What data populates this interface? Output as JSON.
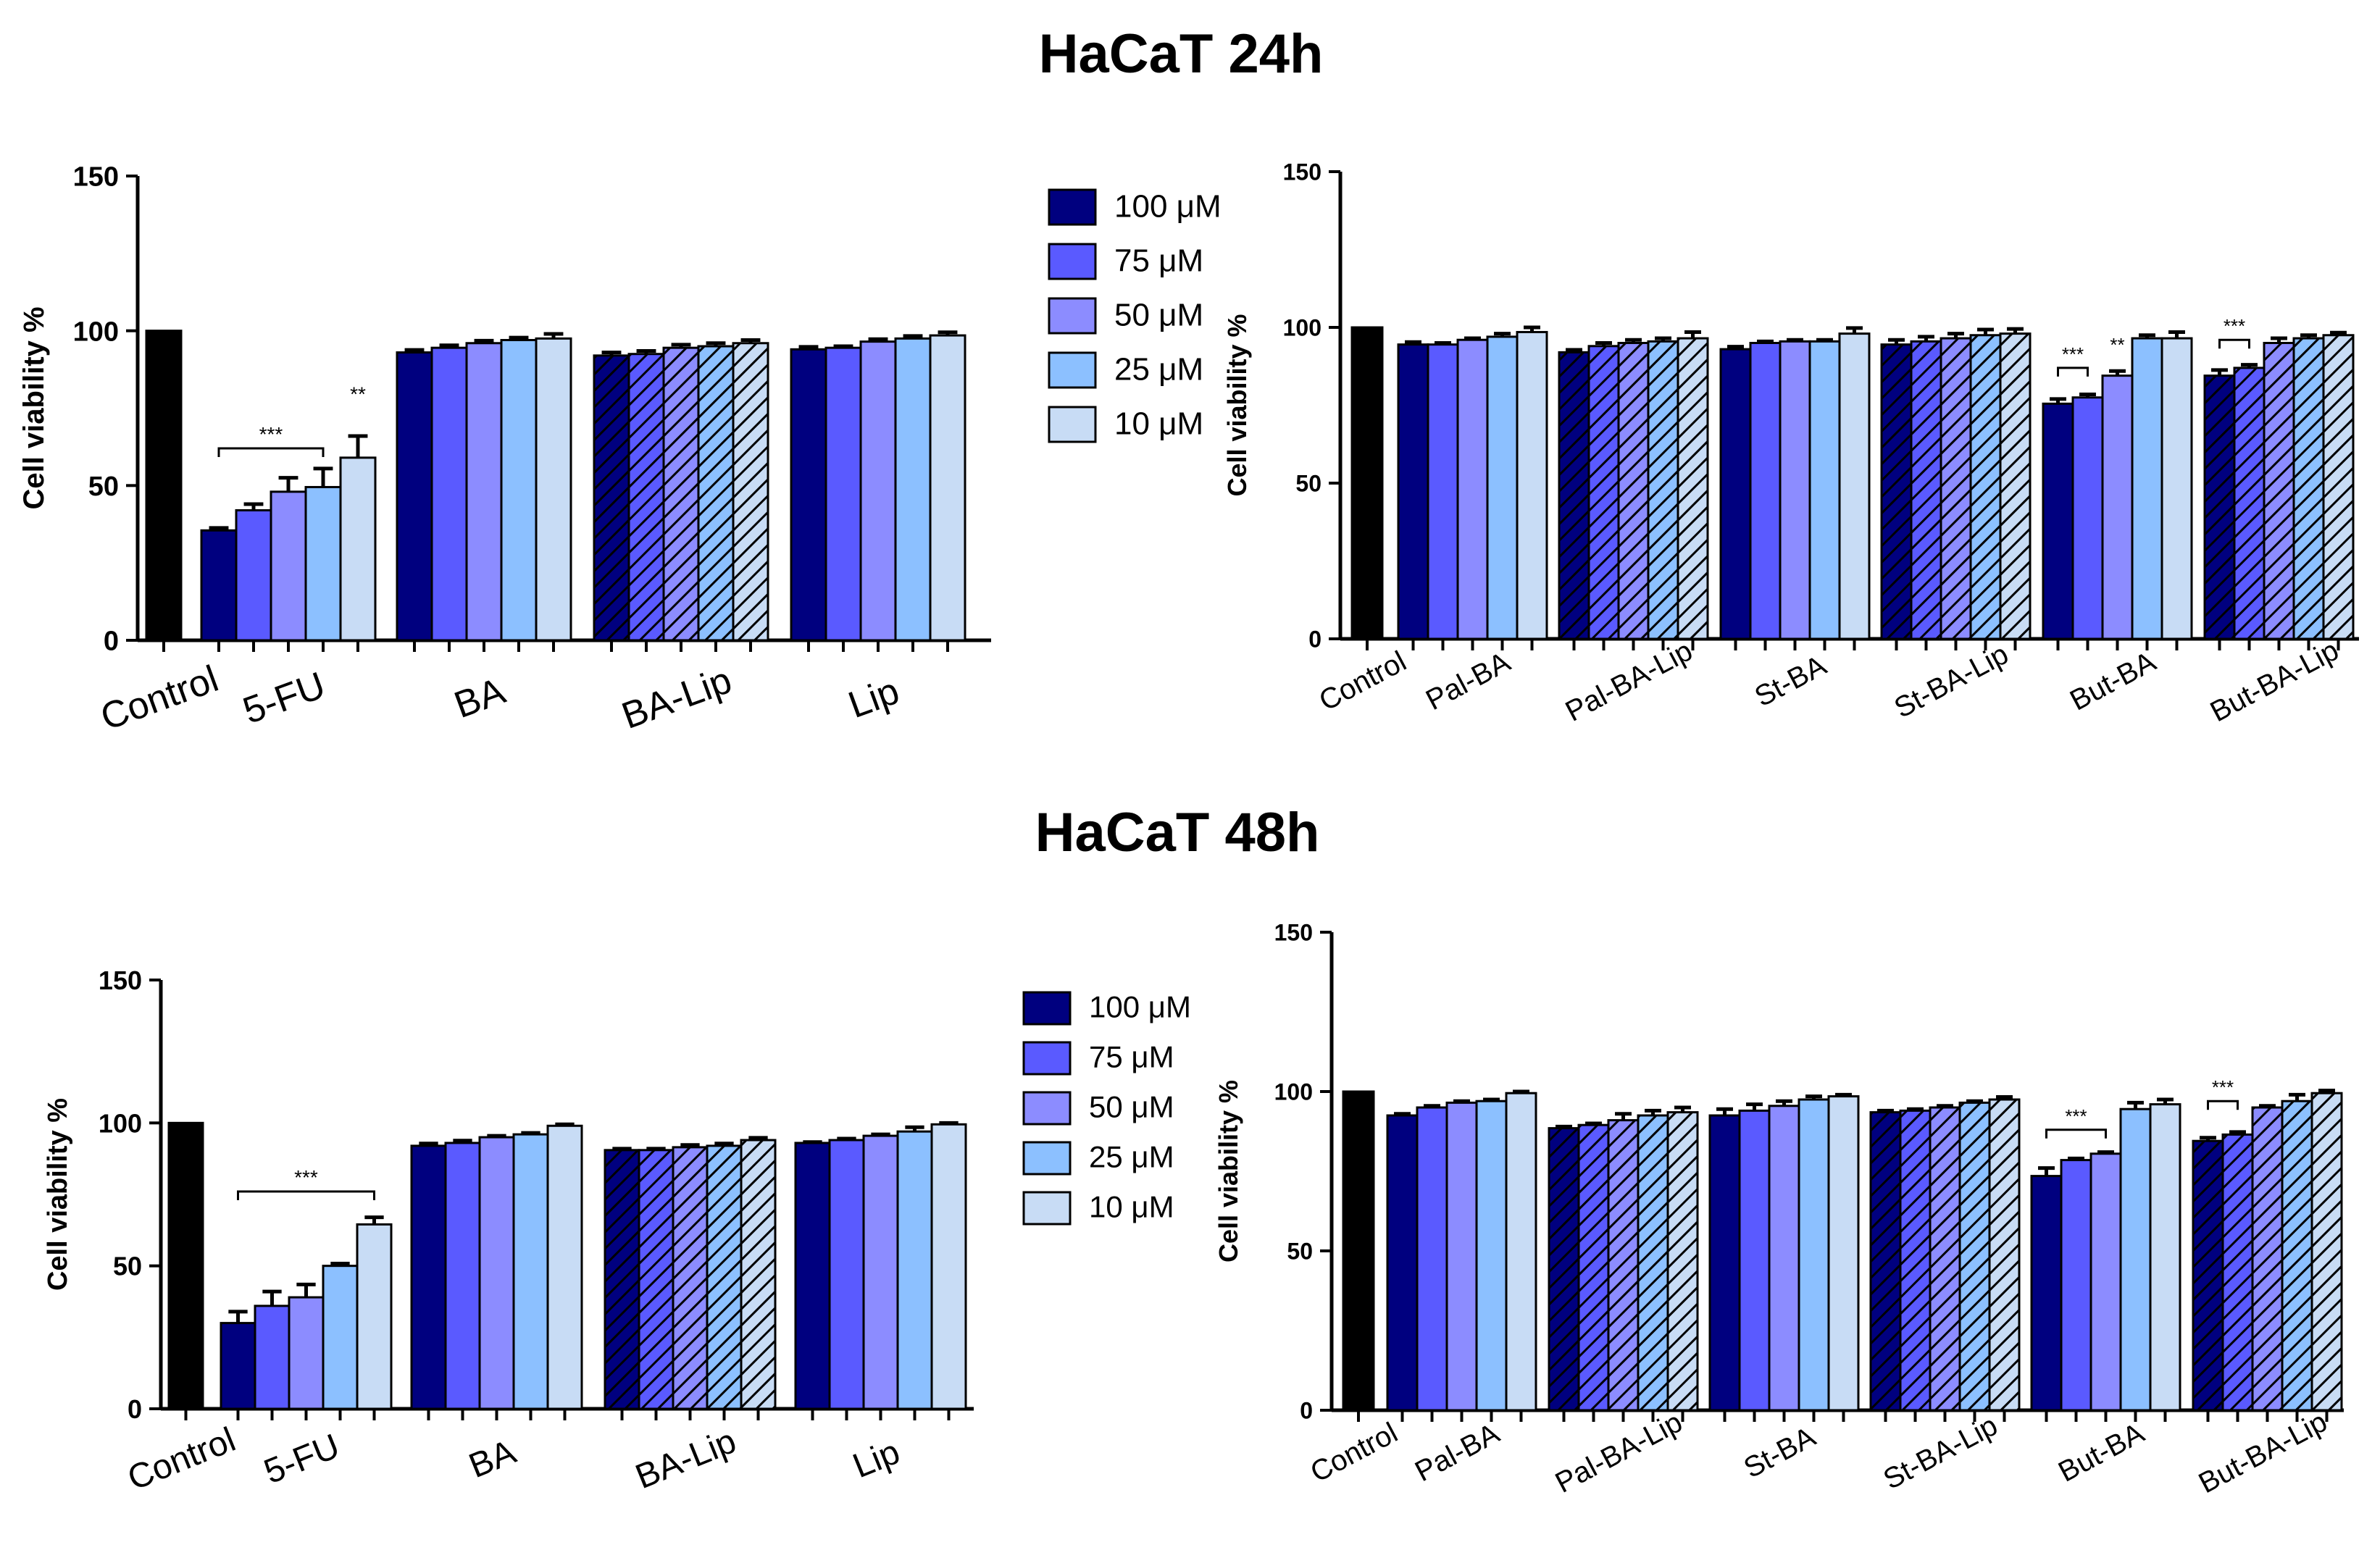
{
  "titles": {
    "top": "HaCaT 24h",
    "bottom": "HaCaT 48h"
  },
  "legend": [
    {
      "label": "100 μM",
      "color": "#00007f"
    },
    {
      "label": "75 μM",
      "color": "#5a5aff"
    },
    {
      "label": "50 μM",
      "color": "#8c8cff"
    },
    {
      "label": "25 μM",
      "color": "#8cc0ff"
    },
    {
      "label": "10 μM",
      "color": "#c8dcf5"
    }
  ],
  "control_color": "#000000",
  "chart_data": [
    {
      "id": "24h-left",
      "type": "bar",
      "section": "HaCaT 24h",
      "ylabel": "Cell viability  %",
      "ylim": [
        0,
        150
      ],
      "yticks": [
        0,
        50,
        100,
        150
      ],
      "categories": [
        "Control",
        "5-FU",
        "BA",
        "BA-Lip",
        "Lip"
      ],
      "groups": [
        {
          "name": "Control",
          "control": true,
          "values": [
            100
          ],
          "errors": [
            0
          ]
        },
        {
          "name": "5-FU",
          "values": [
            35.5,
            42,
            48,
            49.5,
            59
          ],
          "errors": [
            0.8,
            2,
            4.5,
            6,
            7
          ]
        },
        {
          "name": "BA",
          "values": [
            93,
            94.5,
            96,
            97,
            97.5
          ],
          "errors": [
            0.8,
            0.8,
            0.8,
            0.8,
            1.5
          ]
        },
        {
          "name": "BA-Lip",
          "hatched": true,
          "values": [
            92,
            92.5,
            94.5,
            95,
            96
          ],
          "errors": [
            1,
            1,
            1,
            1,
            1
          ]
        },
        {
          "name": "Lip",
          "values": [
            94,
            94.5,
            96.5,
            97.5,
            98.5
          ],
          "errors": [
            0.8,
            0.5,
            0.8,
            0.8,
            1
          ]
        }
      ],
      "significance": [
        {
          "group": "5-FU",
          "from": 0,
          "to": 3,
          "y": 62,
          "text": "***"
        },
        {
          "group": "5-FU",
          "bar": 4,
          "y": 75,
          "text": "**"
        }
      ]
    },
    {
      "id": "24h-right",
      "type": "bar",
      "section": "HaCaT 24h",
      "ylabel": "Cell viability  %",
      "ylim": [
        0,
        150
      ],
      "yticks": [
        0,
        50,
        100,
        150
      ],
      "categories": [
        "Control",
        "Pal-BA",
        "Pal-BA-Lip",
        "St-BA",
        "St-BA-Lip",
        "But-BA",
        "But-BA-Lip"
      ],
      "groups": [
        {
          "name": "Control",
          "control": true,
          "values": [
            100
          ],
          "errors": [
            0
          ]
        },
        {
          "name": "Pal-BA",
          "values": [
            94.5,
            94.5,
            96,
            97,
            98.5
          ],
          "errors": [
            0.8,
            0.5,
            0.5,
            1,
            1.5
          ]
        },
        {
          "name": "Pal-BA-Lip",
          "hatched": true,
          "values": [
            92,
            94,
            95,
            95.5,
            96.5
          ],
          "errors": [
            0.8,
            1,
            1,
            1,
            2
          ]
        },
        {
          "name": "St-BA",
          "values": [
            93,
            95,
            95.5,
            95.5,
            98
          ],
          "errors": [
            0.8,
            0.5,
            0.5,
            0.5,
            1.8
          ]
        },
        {
          "name": "St-BA-Lip",
          "hatched": true,
          "values": [
            94.5,
            95.5,
            96.5,
            97.5,
            98
          ],
          "errors": [
            1.5,
            1.5,
            1.5,
            1.8,
            1.5
          ]
        },
        {
          "name": "But-BA",
          "values": [
            75.5,
            77.5,
            84.5,
            96.5,
            96.5
          ],
          "errors": [
            1.5,
            1,
            1.5,
            1,
            2
          ]
        },
        {
          "name": "But-BA-Lip",
          "hatched": true,
          "values": [
            84.5,
            87,
            95,
            96.5,
            97.5
          ],
          "errors": [
            1.8,
            1,
            1.5,
            1,
            0.8
          ]
        }
      ],
      "significance": [
        {
          "group": "But-BA",
          "from": 0,
          "to": 1,
          "y": 87,
          "text": "***"
        },
        {
          "group": "But-BA",
          "bar": 2,
          "y": 90,
          "text": "**"
        },
        {
          "group": "But-BA-Lip",
          "from": 0,
          "to": 1,
          "y": 96,
          "text": "***"
        }
      ]
    },
    {
      "id": "48h-left",
      "type": "bar",
      "section": "HaCaT 48h",
      "ylabel": "Cell viability  %",
      "ylim": [
        0,
        150
      ],
      "yticks": [
        0,
        50,
        100,
        150
      ],
      "categories": [
        "Control",
        "5-FU",
        "BA",
        "BA-Lip",
        "Lip"
      ],
      "groups": [
        {
          "name": "Control",
          "control": true,
          "values": [
            100
          ],
          "errors": [
            0
          ]
        },
        {
          "name": "5-FU",
          "values": [
            30,
            36,
            39,
            50,
            64.5
          ],
          "errors": [
            4,
            5,
            4.5,
            0.8,
            2.5
          ]
        },
        {
          "name": "BA",
          "values": [
            92,
            93,
            95,
            96,
            99
          ],
          "errors": [
            0.8,
            0.8,
            0.5,
            0.5,
            0.5
          ]
        },
        {
          "name": "BA-Lip",
          "hatched": true,
          "values": [
            90.5,
            90.5,
            91.5,
            92,
            94
          ],
          "errors": [
            0.5,
            0.5,
            0.8,
            0.8,
            0.8
          ]
        },
        {
          "name": "Lip",
          "values": [
            93,
            94,
            95.5,
            97,
            99.5
          ],
          "errors": [
            0.3,
            0.5,
            0.5,
            1.5,
            0.5
          ]
        }
      ],
      "significance": [
        {
          "group": "5-FU",
          "from": 0,
          "to": 4,
          "y": 76,
          "text": "***"
        }
      ]
    },
    {
      "id": "48h-right",
      "type": "bar",
      "section": "HaCaT 48h",
      "ylabel": "Cell viability  %",
      "ylim": [
        0,
        150
      ],
      "yticks": [
        0,
        50,
        100,
        150
      ],
      "categories": [
        "Control",
        "Pal-BA",
        "Pal-BA-Lip",
        "St-BA",
        "St-BA-Lip",
        "But-BA",
        "But-BA-Lip"
      ],
      "groups": [
        {
          "name": "Control",
          "control": true,
          "values": [
            100
          ],
          "errors": [
            0
          ]
        },
        {
          "name": "Pal-BA",
          "values": [
            92.5,
            95,
            96.5,
            97,
            99.5
          ],
          "errors": [
            0.5,
            0.5,
            0.5,
            0.5,
            0.5
          ]
        },
        {
          "name": "Pal-BA-Lip",
          "hatched": true,
          "values": [
            88.5,
            89.5,
            91,
            92.5,
            93.5
          ],
          "errors": [
            0.5,
            0.5,
            2,
            1.5,
            1.5
          ]
        },
        {
          "name": "St-BA",
          "values": [
            92.5,
            94,
            95.5,
            97.5,
            98.5
          ],
          "errors": [
            2,
            2,
            1.5,
            1,
            0.5
          ]
        },
        {
          "name": "St-BA-Lip",
          "hatched": true,
          "values": [
            93.5,
            94,
            95,
            96.5,
            97.5
          ],
          "errors": [
            0.5,
            0.5,
            0.5,
            0.5,
            0.8
          ]
        },
        {
          "name": "But-BA",
          "values": [
            73.5,
            78.5,
            80.5,
            94.5,
            96
          ],
          "errors": [
            2.5,
            0.5,
            0.5,
            2,
            1.5
          ]
        },
        {
          "name": "But-BA-Lip",
          "hatched": true,
          "values": [
            84.5,
            86.5,
            95,
            97,
            99.5
          ],
          "errors": [
            1,
            0.8,
            0.5,
            2,
            0.8
          ]
        }
      ],
      "significance": [
        {
          "group": "But-BA",
          "from": 0,
          "to": 2,
          "y": 88,
          "text": "***"
        },
        {
          "group": "But-BA-Lip",
          "from": 0,
          "to": 1,
          "y": 97,
          "text": "***"
        }
      ]
    }
  ]
}
